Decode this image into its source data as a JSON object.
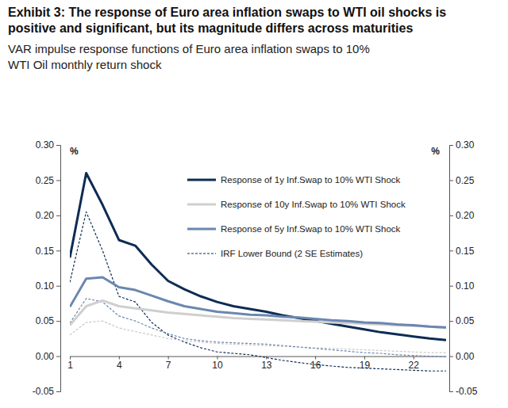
{
  "chart_data": {
    "type": "line",
    "title": "Exhibit 3: The response of Euro area inflation swaps to WTI oil shocks is positive and significant, but its magnitude differs across maturities",
    "subtitle": "VAR impulse response functions of Euro area inflation swaps to 10% WTI Oil monthly return shock",
    "y_label": "%",
    "y2_label": "%",
    "x": [
      1,
      2,
      3,
      4,
      5,
      6,
      7,
      8,
      9,
      10,
      11,
      12,
      13,
      14,
      15,
      16,
      17,
      18,
      19,
      20,
      21,
      22,
      23,
      24
    ],
    "xlim": [
      1,
      24
    ],
    "xticks": [
      1,
      4,
      7,
      10,
      13,
      16,
      19,
      22
    ],
    "ylim": [
      -0.05,
      0.3
    ],
    "yticks": [
      -0.05,
      {
        "value": 0,
        "label": "0.00"
      },
      0.05,
      {
        "value": 0.1,
        "label": "0.10"
      },
      0.15,
      {
        "value": 0.2,
        "label": "0.20"
      },
      0.25,
      {
        "value": 0.3,
        "label": "0.30"
      }
    ],
    "y2lim": [
      -0.05,
      0.3
    ],
    "y2ticks": [
      -0.05,
      {
        "value": 0,
        "label": "0.00"
      },
      0.05,
      {
        "value": 0.1,
        "label": "0.10"
      },
      0.15,
      {
        "value": 0.2,
        "label": "0.20"
      },
      0.25,
      {
        "value": 0.3,
        "label": "0.30"
      }
    ],
    "grid": false,
    "legend": "upper right",
    "series": [
      {
        "name": "Response of 1y Inf.Swap to 10% WTI Shock",
        "color": "#0d2c54",
        "line_style": "solid",
        "values": [
          0.14,
          0.26,
          0.215,
          0.165,
          0.157,
          0.13,
          0.107,
          0.095,
          0.085,
          0.077,
          0.071,
          0.067,
          0.063,
          0.058,
          0.054,
          0.05,
          0.046,
          0.042,
          0.038,
          0.034,
          0.031,
          0.028,
          0.025,
          0.023
        ]
      },
      {
        "name": "Response of 10y Inf.Swap to 10% WTI Shock",
        "color": "#cfcfcf",
        "line_style": "solid",
        "values": [
          0.044,
          0.071,
          0.079,
          0.071,
          0.068,
          0.065,
          0.062,
          0.06,
          0.058,
          0.056,
          0.054,
          0.053,
          0.052,
          0.051,
          0.05,
          0.049,
          0.048,
          0.047,
          0.046,
          0.045,
          0.044,
          0.043,
          0.042,
          0.04
        ]
      },
      {
        "name": "Response of 5y Inf.Swap to 10% WTI Shock",
        "color": "#6b87b0",
        "line_style": "solid",
        "values": [
          0.07,
          0.11,
          0.112,
          0.098,
          0.094,
          0.086,
          0.078,
          0.071,
          0.067,
          0.063,
          0.061,
          0.059,
          0.058,
          0.056,
          0.055,
          0.053,
          0.051,
          0.05,
          0.048,
          0.047,
          0.045,
          0.044,
          0.042,
          0.041
        ]
      },
      {
        "name": "IRF Lower Bound (2 SE Estimates)",
        "color": "#0d2c54",
        "line_style": "dashed",
        "values": [
          0.105,
          0.205,
          0.15,
          0.085,
          0.077,
          0.048,
          0.03,
          0.02,
          0.012,
          0.006,
          0.004,
          0.002,
          -0.002,
          -0.006,
          -0.009,
          -0.012,
          -0.014,
          -0.016,
          -0.017,
          -0.018,
          -0.019,
          -0.02,
          -0.021,
          -0.021
        ]
      },
      {
        "color": "#c8c8c8",
        "line_style": "dashed",
        "values": [
          0.03,
          0.048,
          0.05,
          0.04,
          0.035,
          0.03,
          0.025,
          0.022,
          0.02,
          0.018,
          0.017,
          0.016,
          0.015,
          0.014,
          0.013,
          0.012,
          0.011,
          0.01,
          0.009,
          0.008,
          0.007,
          0.006,
          0.005,
          0.005
        ]
      },
      {
        "color": "#6b87b0",
        "line_style": "dashed",
        "values": [
          0.047,
          0.082,
          0.077,
          0.057,
          0.05,
          0.04,
          0.032,
          0.025,
          0.022,
          0.02,
          0.019,
          0.018,
          0.017,
          0.015,
          0.013,
          0.011,
          0.009,
          0.007,
          0.005,
          0.004,
          0.002,
          0.001,
          0,
          -0.001
        ]
      }
    ]
  }
}
